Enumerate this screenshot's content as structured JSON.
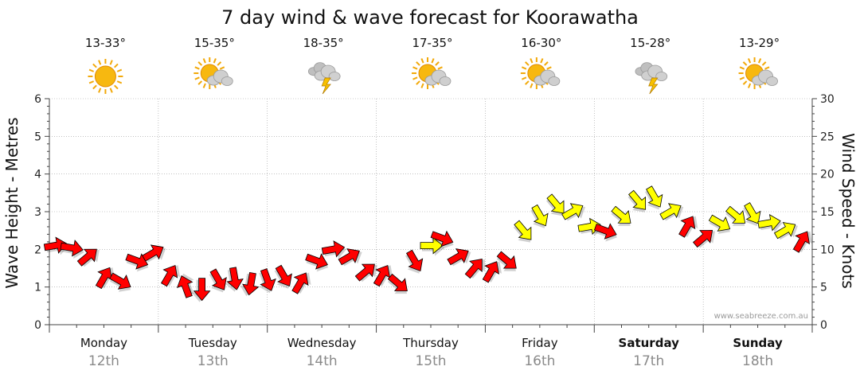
{
  "chart_data": {
    "type": "line",
    "title": "7 day wind & wave forecast for Koorawatha",
    "ylabel_left": "Wave Height - Metres",
    "ylabel_right": "Wind Speed - Knots",
    "ylim_left": [
      0,
      6
    ],
    "ylim_right": [
      0,
      30
    ],
    "yticks_left": [
      "0",
      "1",
      "2",
      "3",
      "4",
      "5",
      "6"
    ],
    "yticks_right": [
      "0",
      "5",
      "10",
      "15",
      "20",
      "25",
      "30"
    ],
    "grid": true,
    "watermark": "www.seabreeze.com.au",
    "days": [
      {
        "day": "Monday",
        "date": "12th",
        "temp": "13-33°",
        "icon": "sunny-icon",
        "bold": false
      },
      {
        "day": "Tuesday",
        "date": "13th",
        "temp": "15-35°",
        "icon": "partly-cloudy-icon",
        "bold": false
      },
      {
        "day": "Wednesday",
        "date": "14th",
        "temp": "18-35°",
        "icon": "storm-icon",
        "bold": false
      },
      {
        "day": "Thursday",
        "date": "15th",
        "temp": "17-35°",
        "icon": "partly-cloudy-icon",
        "bold": false
      },
      {
        "day": "Friday",
        "date": "16th",
        "temp": "16-30°",
        "icon": "partly-cloudy-icon",
        "bold": false
      },
      {
        "day": "Saturday",
        "date": "17th",
        "temp": "15-28°",
        "icon": "storm-icon",
        "bold": true
      },
      {
        "day": "Sunday",
        "date": "18th",
        "temp": "13-29°",
        "icon": "partly-cloudy-icon",
        "bold": true
      }
    ],
    "colors": {
      "strong": "#ff0000",
      "moderate": "#ffff00",
      "outline": "#000000",
      "grid": "#9a9a9a"
    },
    "series": [
      {
        "x_unit": "day",
        "x": [
          0.05,
          0.2,
          0.35,
          0.5,
          0.65,
          0.8,
          0.95,
          1.1,
          1.25,
          1.4,
          1.55,
          1.7,
          1.85,
          2.0,
          2.15,
          2.3,
          2.45,
          2.6,
          2.75,
          2.9,
          3.05,
          3.2,
          3.35,
          3.5,
          3.6,
          3.75,
          3.9,
          4.05,
          4.2,
          4.35,
          4.5,
          4.65,
          4.8,
          4.95,
          5.1,
          5.25,
          5.4,
          5.55,
          5.7,
          5.85,
          6.0,
          6.15,
          6.3,
          6.45,
          6.6,
          6.75,
          6.9
        ],
        "wind_knots": [
          10.5,
          10.2,
          9.0,
          6.2,
          5.8,
          8.5,
          9.5,
          6.5,
          5.0,
          4.8,
          6.0,
          6.2,
          5.5,
          6.0,
          6.5,
          5.5,
          8.5,
          10.0,
          9.0,
          7.0,
          6.5,
          5.5,
          8.5,
          10.5,
          11.5,
          9.0,
          7.5,
          7.0,
          8.5,
          12.5,
          14.5,
          16.0,
          15.0,
          13.0,
          12.5,
          14.5,
          16.5,
          17.0,
          15.0,
          13.0,
          11.5,
          13.5,
          14.5,
          14.8,
          13.5,
          12.5,
          11.0
        ],
        "wind_dir_deg": [
          350,
          10,
          320,
          300,
          30,
          20,
          330,
          300,
          250,
          90,
          60,
          80,
          100,
          70,
          60,
          300,
          20,
          350,
          330,
          320,
          300,
          40,
          60,
          0,
          20,
          330,
          310,
          300,
          40,
          50,
          60,
          50,
          330,
          350,
          20,
          40,
          50,
          60,
          330,
          300,
          320,
          30,
          40,
          60,
          350,
          330,
          300
        ],
        "strength": [
          "strong",
          "strong",
          "strong",
          "strong",
          "strong",
          "strong",
          "strong",
          "strong",
          "strong",
          "strong",
          "strong",
          "strong",
          "strong",
          "strong",
          "strong",
          "strong",
          "strong",
          "strong",
          "strong",
          "strong",
          "strong",
          "strong",
          "strong",
          "moderate",
          "strong",
          "strong",
          "strong",
          "strong",
          "strong",
          "moderate",
          "moderate",
          "moderate",
          "moderate",
          "moderate",
          "strong",
          "moderate",
          "moderate",
          "moderate",
          "moderate",
          "strong",
          "strong",
          "moderate",
          "moderate",
          "moderate",
          "moderate",
          "moderate",
          "strong"
        ]
      }
    ]
  }
}
